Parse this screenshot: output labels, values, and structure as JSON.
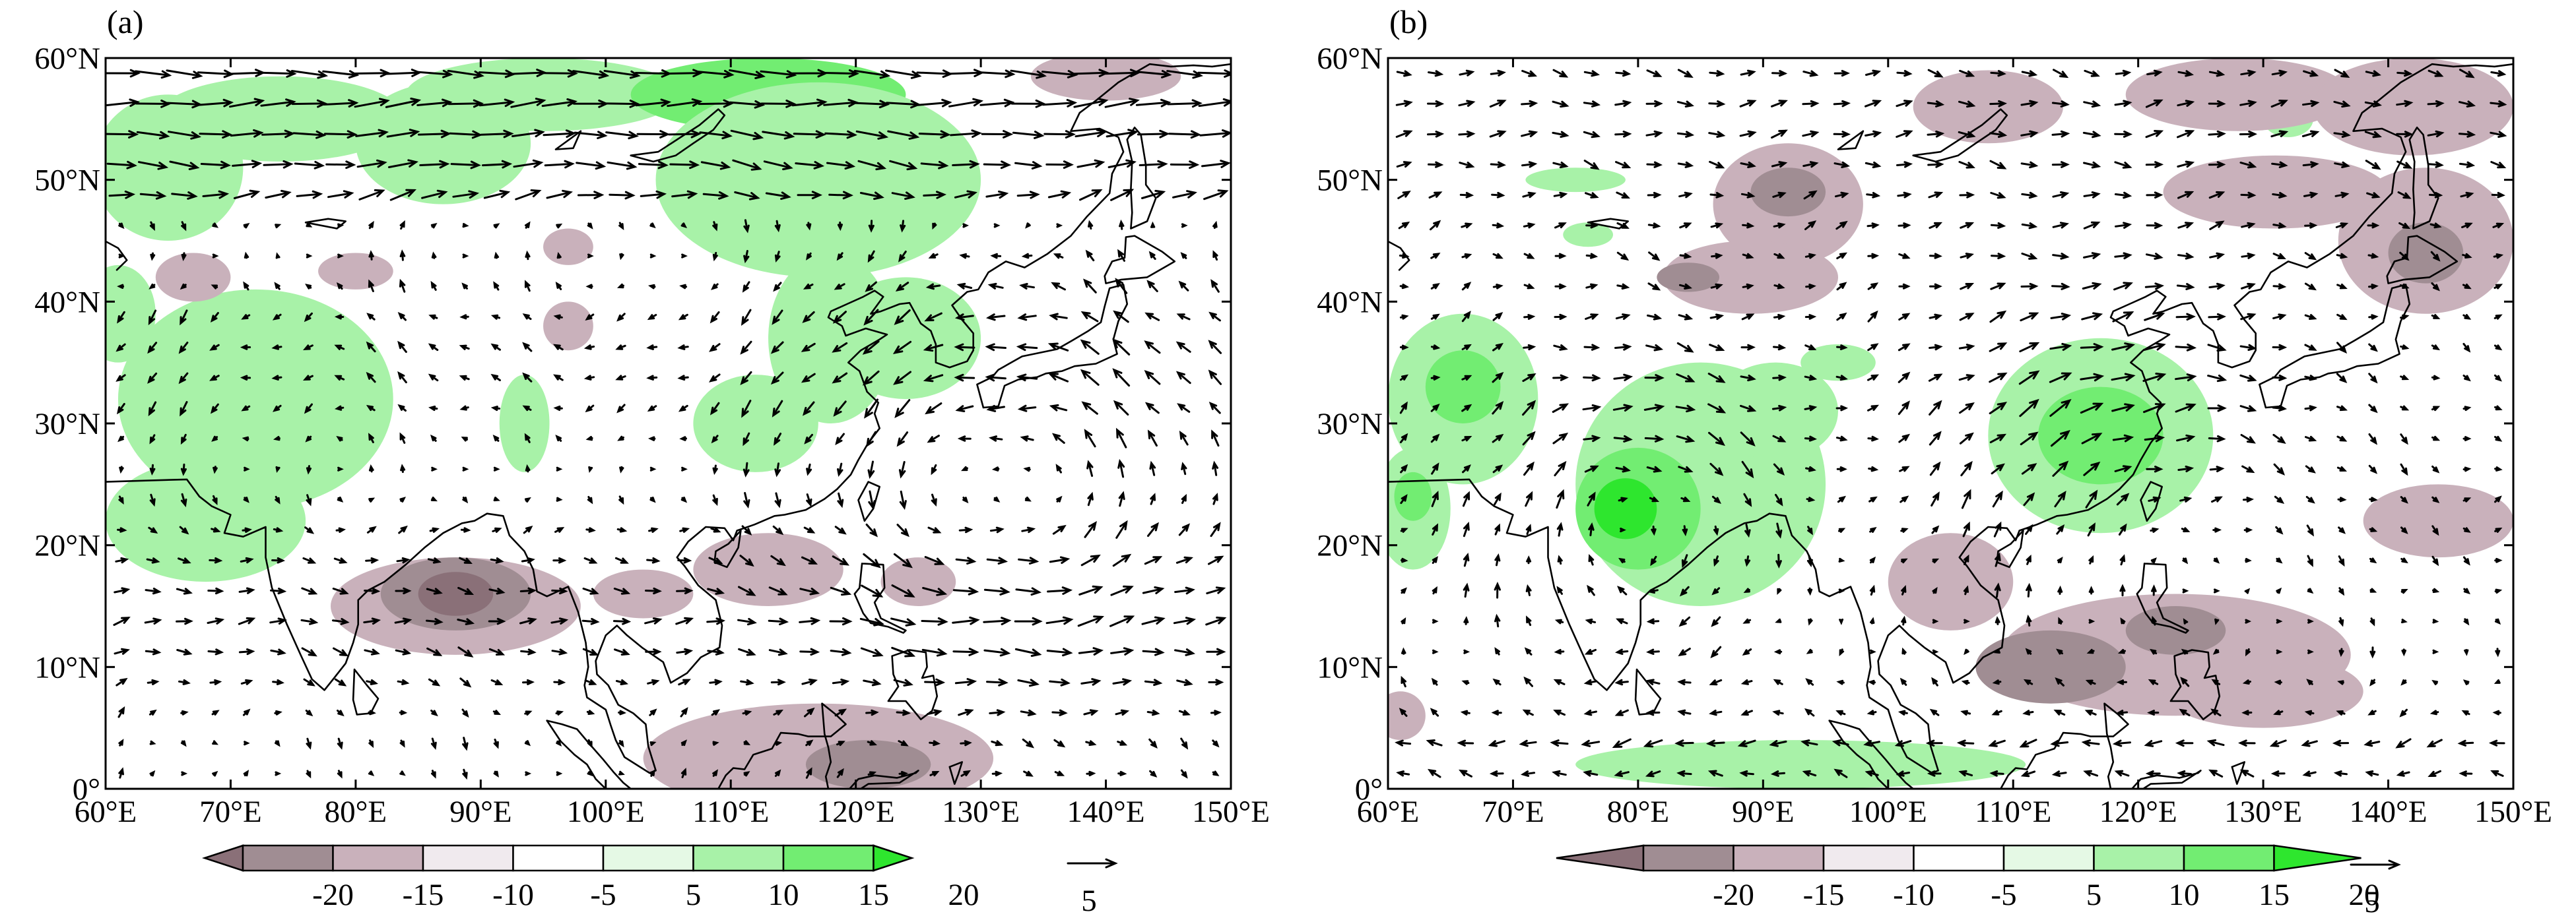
{
  "figure": {
    "panels": [
      {
        "id": "a",
        "label": "(a)",
        "lon_ticks": [
          "60°E",
          "70°E",
          "80°E",
          "90°E",
          "100°E",
          "110°E",
          "120°E",
          "130°E",
          "140°E",
          "150°E"
        ],
        "lat_ticks": [
          "0°",
          "10°N",
          "20°N",
          "30°N",
          "40°N",
          "50°N",
          "60°N"
        ],
        "colorbar_labels": [
          "-20",
          "-15",
          "-10",
          "-5",
          "5",
          "10",
          "15",
          "20"
        ],
        "reference_vector_label": "5"
      },
      {
        "id": "b",
        "label": "(b)",
        "lon_ticks": [
          "60°E",
          "70°E",
          "80°E",
          "90°E",
          "100°E",
          "110°E",
          "120°E",
          "130°E",
          "140°E",
          "150°E"
        ],
        "lat_ticks": [
          "0°",
          "10°N",
          "20°N",
          "30°N",
          "40°N",
          "50°N",
          "60°N"
        ],
        "colorbar_labels": [
          "-20",
          "-15",
          "-10",
          "-5",
          "5",
          "10",
          "15",
          "20"
        ],
        "reference_vector_label": "5"
      }
    ]
  },
  "map_extent": {
    "lon_range": [
      60,
      150
    ],
    "lat_range": [
      0,
      60
    ],
    "vector_grid_step_deg": 2.5
  },
  "colorbar": {
    "levels": [
      -20,
      -15,
      -10,
      -5,
      5,
      10,
      15,
      20
    ],
    "colors": [
      "#8a7078",
      "#a08d93",
      "#c9b1bb",
      "#f0eaee",
      "#ffffff",
      "#e5f9e5",
      "#a8f2a8",
      "#72ed72",
      "#2ee62e"
    ]
  },
  "reference_vector": {
    "magnitude": 5
  },
  "shaded_regions": {
    "a": [
      {
        "lon": 95,
        "lat": 57,
        "rlon": 11,
        "rlat": 3,
        "level": "green1"
      },
      {
        "lon": 113,
        "lat": 57,
        "rlon": 11,
        "rlat": 3,
        "level": "green2"
      },
      {
        "lon": 74,
        "lat": 55,
        "rlon": 10,
        "rlat": 3.5,
        "level": "green1"
      },
      {
        "lon": 87,
        "lat": 53,
        "rlon": 7,
        "rlat": 5,
        "level": "green1"
      },
      {
        "lon": 65,
        "lat": 51,
        "rlon": 6,
        "rlat": 6,
        "level": "green1"
      },
      {
        "lon": 117,
        "lat": 50,
        "rlon": 13,
        "rlat": 8,
        "level": "green1"
      },
      {
        "lon": 140,
        "lat": 58.5,
        "rlon": 6,
        "rlat": 2,
        "level": "pink1"
      },
      {
        "lon": 72,
        "lat": 32,
        "rlon": 11,
        "rlat": 9,
        "level": "green1"
      },
      {
        "lon": 68,
        "lat": 22,
        "rlon": 8,
        "rlat": 5,
        "level": "green1"
      },
      {
        "lon": 61,
        "lat": 39,
        "rlon": 3,
        "rlat": 4,
        "level": "green1"
      },
      {
        "lon": 93.5,
        "lat": 30,
        "rlon": 2,
        "rlat": 4,
        "level": "green1"
      },
      {
        "lon": 118,
        "lat": 37,
        "rlon": 5,
        "rlat": 7,
        "level": "green1"
      },
      {
        "lon": 124,
        "lat": 37,
        "rlon": 6,
        "rlat": 5,
        "level": "green1"
      },
      {
        "lon": 112,
        "lat": 30,
        "rlon": 5,
        "rlat": 4,
        "level": "green1"
      },
      {
        "lon": 67,
        "lat": 42,
        "rlon": 3,
        "rlat": 2,
        "level": "pink1"
      },
      {
        "lon": 80,
        "lat": 42.5,
        "rlon": 3,
        "rlat": 1.5,
        "level": "pink1"
      },
      {
        "lon": 97,
        "lat": 44.5,
        "rlon": 2,
        "rlat": 1.5,
        "level": "pink1"
      },
      {
        "lon": 97,
        "lat": 38,
        "rlon": 2,
        "rlat": 2,
        "level": "pink1"
      },
      {
        "lon": 88,
        "lat": 15,
        "rlon": 10,
        "rlat": 4,
        "level": "pink1"
      },
      {
        "lon": 88,
        "lat": 16,
        "rlon": 6,
        "rlat": 3,
        "level": "pink2"
      },
      {
        "lon": 88,
        "lat": 16,
        "rlon": 3,
        "rlat": 1.8,
        "level": "pink3"
      },
      {
        "lon": 103,
        "lat": 16,
        "rlon": 4,
        "rlat": 2,
        "level": "pink1"
      },
      {
        "lon": 113,
        "lat": 18,
        "rlon": 6,
        "rlat": 3,
        "level": "pink1"
      },
      {
        "lon": 125,
        "lat": 17,
        "rlon": 3,
        "rlat": 2,
        "level": "pink1"
      },
      {
        "lon": 117,
        "lat": 2.5,
        "rlon": 14,
        "rlat": 4.5,
        "level": "pink1"
      },
      {
        "lon": 121,
        "lat": 2,
        "rlon": 5,
        "rlat": 2,
        "level": "pink2"
      }
    ],
    "b": [
      {
        "lon": 66,
        "lat": 32,
        "rlon": 6,
        "rlat": 7,
        "level": "green1"
      },
      {
        "lon": 66,
        "lat": 33,
        "rlon": 3,
        "rlat": 3,
        "level": "green2"
      },
      {
        "lon": 62,
        "lat": 23,
        "rlon": 3,
        "rlat": 5,
        "level": "green1"
      },
      {
        "lon": 62,
        "lat": 24,
        "rlon": 1.5,
        "rlat": 2,
        "level": "green2"
      },
      {
        "lon": 85,
        "lat": 25,
        "rlon": 10,
        "rlat": 10,
        "level": "green1"
      },
      {
        "lon": 91,
        "lat": 31,
        "rlon": 5,
        "rlat": 4,
        "level": "green1"
      },
      {
        "lon": 80,
        "lat": 23,
        "rlon": 5,
        "rlat": 5,
        "level": "green2"
      },
      {
        "lon": 79,
        "lat": 23,
        "rlon": 2.5,
        "rlat": 2.5,
        "level": "green3"
      },
      {
        "lon": 96,
        "lat": 35,
        "rlon": 3,
        "rlat": 1.5,
        "level": "green1"
      },
      {
        "lon": 117,
        "lat": 29,
        "rlon": 9,
        "rlat": 8,
        "level": "green1"
      },
      {
        "lon": 117,
        "lat": 29,
        "rlon": 5,
        "rlat": 4,
        "level": "green2"
      },
      {
        "lon": 93,
        "lat": 2,
        "rlon": 18,
        "rlat": 2,
        "level": "green1"
      },
      {
        "lon": 75,
        "lat": 50,
        "rlon": 4,
        "rlat": 1,
        "level": "green1"
      },
      {
        "lon": 76,
        "lat": 45.5,
        "rlon": 2,
        "rlat": 1,
        "level": "green1"
      },
      {
        "lon": 132,
        "lat": 55,
        "rlon": 2,
        "rlat": 1.5,
        "level": "green1"
      },
      {
        "lon": 92,
        "lat": 48,
        "rlon": 6,
        "rlat": 5,
        "level": "pink1"
      },
      {
        "lon": 89,
        "lat": 42,
        "rlon": 7,
        "rlat": 3,
        "level": "pink1"
      },
      {
        "lon": 84,
        "lat": 42,
        "rlon": 2.5,
        "rlat": 1.2,
        "level": "pink2"
      },
      {
        "lon": 92,
        "lat": 49,
        "rlon": 3,
        "rlat": 2,
        "level": "pink2"
      },
      {
        "lon": 108,
        "lat": 56,
        "rlon": 6,
        "rlat": 3,
        "level": "pink1"
      },
      {
        "lon": 128,
        "lat": 57,
        "rlon": 9,
        "rlat": 3,
        "level": "pink1"
      },
      {
        "lon": 142,
        "lat": 56,
        "rlon": 8,
        "rlat": 4,
        "level": "pink1"
      },
      {
        "lon": 131,
        "lat": 49,
        "rlon": 9,
        "rlat": 3,
        "level": "pink1"
      },
      {
        "lon": 143,
        "lat": 45,
        "rlon": 7,
        "rlat": 6,
        "level": "pink1"
      },
      {
        "lon": 143,
        "lat": 44,
        "rlon": 3,
        "rlat": 2.5,
        "level": "pink2"
      },
      {
        "lon": 144,
        "lat": 22,
        "rlon": 6,
        "rlat": 3,
        "level": "pink1"
      },
      {
        "lon": 105,
        "lat": 17,
        "rlon": 5,
        "rlat": 4,
        "level": "pink1"
      },
      {
        "lon": 123,
        "lat": 11,
        "rlon": 14,
        "rlat": 5,
        "level": "pink1"
      },
      {
        "lon": 113,
        "lat": 10,
        "rlon": 6,
        "rlat": 3,
        "level": "pink2"
      },
      {
        "lon": 123,
        "lat": 13,
        "rlon": 4,
        "rlat": 2,
        "level": "pink2"
      },
      {
        "lon": 130,
        "lat": 8,
        "rlon": 8,
        "rlat": 3,
        "level": "pink1"
      },
      {
        "lon": 61,
        "lat": 6,
        "rlon": 2,
        "rlat": 2,
        "level": "pink1"
      }
    ]
  }
}
